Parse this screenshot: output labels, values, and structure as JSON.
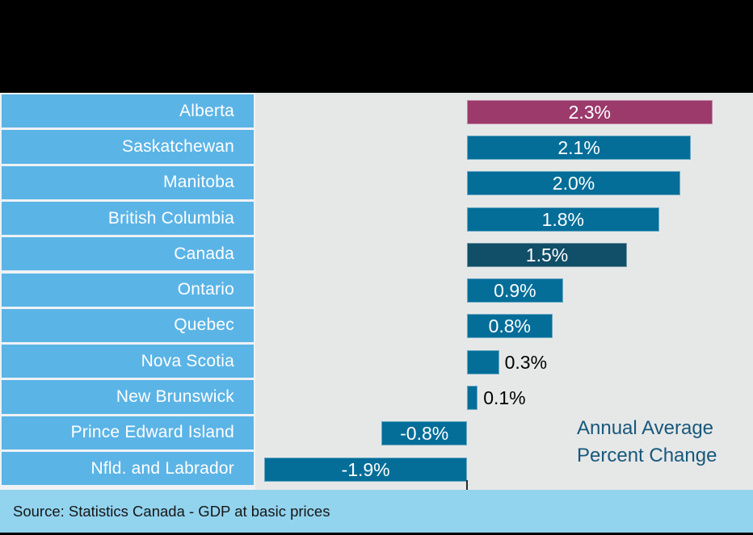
{
  "header": {
    "title": ""
  },
  "chart_data": {
    "type": "bar",
    "orientation": "horizontal",
    "title": "",
    "categories": [
      "Alberta",
      "Saskatchewan",
      "Manitoba",
      "British Columbia",
      "Canada",
      "Ontario",
      "Quebec",
      "Nova Scotia",
      "New Brunswick",
      "Prince Edward Island",
      "Nfld. and Labrador"
    ],
    "values": [
      2.3,
      2.1,
      2.0,
      1.8,
      1.5,
      0.9,
      0.8,
      0.3,
      0.1,
      -0.8,
      -1.9
    ],
    "value_labels": [
      "2.3%",
      "2.1%",
      "2.0%",
      "1.8%",
      "1.5%",
      "0.9%",
      "0.8%",
      "0.3%",
      "0.1%",
      "-0.8%",
      "-1.9%"
    ],
    "label_positions": [
      "inside",
      "inside",
      "inside",
      "inside",
      "inside",
      "inside",
      "inside",
      "outside",
      "outside",
      "inside",
      "inside"
    ],
    "bar_colors": [
      "#9c3a6c",
      "#046e99",
      "#046e99",
      "#046e99",
      "#114e68",
      "#046e99",
      "#046e99",
      "#046e99",
      "#046e99",
      "#046e99",
      "#046e99"
    ],
    "xlim": [
      -2.0,
      2.7
    ],
    "gridlines": false,
    "legend": "none",
    "annotation": {
      "line1": "Annual Average",
      "line2": "Percent Change"
    }
  },
  "colors": {
    "category_box": "#5bb4e6",
    "bar_teal": "#046e99",
    "bar_canada_navy": "#114e68",
    "bar_alberta_magenta": "#9c3a6c",
    "chart_background": "#e6e8e8",
    "source_strip_background": "#92d3ee",
    "annotation_text": "#17587b",
    "header_background": "#000000"
  },
  "footer": {
    "source_text": "Source: Statistics Canada - GDP at basic prices"
  }
}
